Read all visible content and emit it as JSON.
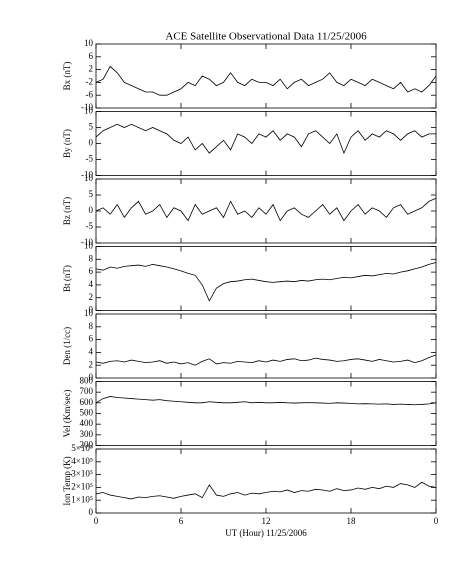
{
  "chart_data": [
    {
      "type": "line",
      "title": "ACE Satellite Observational Data   11/25/2006",
      "ylabel": "Bx (nT)",
      "ylim": [
        -10,
        10
      ],
      "yticks": [
        -10,
        -6,
        -2,
        2,
        6,
        10
      ],
      "xlim": [
        0,
        24
      ],
      "xticks": [
        0,
        6,
        12,
        18,
        24
      ],
      "color": "#000000",
      "x": [
        0,
        0.5,
        1,
        1.5,
        2,
        2.5,
        3,
        3.5,
        4,
        4.5,
        5,
        5.5,
        6,
        6.5,
        7,
        7.5,
        8,
        8.5,
        9,
        9.5,
        10,
        10.5,
        11,
        11.5,
        12,
        12.5,
        13,
        13.5,
        14,
        14.5,
        15,
        15.5,
        16,
        16.5,
        17,
        17.5,
        18,
        18.5,
        19,
        19.5,
        20,
        20.5,
        21,
        21.5,
        22,
        22.5,
        23,
        23.5,
        24
      ],
      "values": [
        -2,
        -1,
        3,
        1,
        -2,
        -3,
        -4,
        -5,
        -5,
        -6,
        -6,
        -5,
        -4,
        -2,
        -3,
        0,
        -1,
        -3,
        -2,
        1,
        -2,
        -3,
        -1,
        -2,
        -2,
        -3,
        -1,
        -4,
        -2,
        -1,
        -3,
        -2,
        -1,
        1,
        -2,
        -3,
        -1,
        -2,
        -3,
        -1,
        -2,
        -3,
        -4,
        -2,
        -5,
        -4,
        -5,
        -3,
        0
      ]
    },
    {
      "type": "line",
      "ylabel": "By (nT)",
      "ylim": [
        -10,
        10
      ],
      "yticks": [
        -10,
        -5,
        0,
        5,
        10
      ],
      "xlim": [
        0,
        24
      ],
      "xticks": [
        0,
        6,
        12,
        18,
        24
      ],
      "color": "#000000",
      "x": [
        0,
        0.5,
        1,
        1.5,
        2,
        2.5,
        3,
        3.5,
        4,
        4.5,
        5,
        5.5,
        6,
        6.5,
        7,
        7.5,
        8,
        8.5,
        9,
        9.5,
        10,
        10.5,
        11,
        11.5,
        12,
        12.5,
        13,
        13.5,
        14,
        14.5,
        15,
        15.5,
        16,
        16.5,
        17,
        17.5,
        18,
        18.5,
        19,
        19.5,
        20,
        20.5,
        21,
        21.5,
        22,
        22.5,
        23,
        23.5,
        24
      ],
      "values": [
        2,
        4,
        5,
        6,
        5,
        6,
        5,
        4,
        5,
        4,
        3,
        1,
        0,
        2,
        -2,
        0,
        -3,
        -1,
        1,
        -2,
        3,
        2,
        0,
        3,
        2,
        4,
        1,
        3,
        2,
        -1,
        3,
        4,
        2,
        0,
        3,
        -3,
        2,
        4,
        1,
        3,
        2,
        4,
        3,
        1,
        3,
        4,
        2,
        3,
        3
      ]
    },
    {
      "type": "line",
      "ylabel": "Bz (nT)",
      "ylim": [
        -10,
        10
      ],
      "yticks": [
        -10,
        -5,
        0,
        5,
        10
      ],
      "xlim": [
        0,
        24
      ],
      "xticks": [
        0,
        6,
        12,
        18,
        24
      ],
      "color": "#000000",
      "x": [
        0,
        0.5,
        1,
        1.5,
        2,
        2.5,
        3,
        3.5,
        4,
        4.5,
        5,
        5.5,
        6,
        6.5,
        7,
        7.5,
        8,
        8.5,
        9,
        9.5,
        10,
        10.5,
        11,
        11.5,
        12,
        12.5,
        13,
        13.5,
        14,
        14.5,
        15,
        15.5,
        16,
        16.5,
        17,
        17.5,
        18,
        18.5,
        19,
        19.5,
        20,
        20.5,
        21,
        21.5,
        22,
        22.5,
        23,
        23.5,
        24
      ],
      "values": [
        0,
        1,
        -1,
        2,
        -2,
        1,
        3,
        -1,
        0,
        2,
        -2,
        1,
        0,
        -3,
        2,
        -1,
        0,
        1,
        -2,
        3,
        -1,
        0,
        -2,
        1,
        -1,
        2,
        -3,
        0,
        1,
        -1,
        -2,
        0,
        2,
        -1,
        1,
        -3,
        0,
        2,
        -1,
        1,
        0,
        -2,
        1,
        2,
        -1,
        0,
        1,
        3,
        4
      ]
    },
    {
      "type": "line",
      "ylabel": "Bt (nT)",
      "ylim": [
        0,
        10
      ],
      "yticks": [
        0,
        2,
        4,
        6,
        8,
        10
      ],
      "xlim": [
        0,
        24
      ],
      "xticks": [
        0,
        6,
        12,
        18,
        24
      ],
      "color": "#000000",
      "x": [
        0,
        0.5,
        1,
        1.5,
        2,
        2.5,
        3,
        3.5,
        4,
        4.5,
        5,
        5.5,
        6,
        6.5,
        7,
        7.5,
        8,
        8.5,
        9,
        9.5,
        10,
        10.5,
        11,
        11.5,
        12,
        12.5,
        13,
        13.5,
        14,
        14.5,
        15,
        15.5,
        16,
        16.5,
        17,
        17.5,
        18,
        18.5,
        19,
        19.5,
        20,
        20.5,
        21,
        21.5,
        22,
        22.5,
        23,
        23.5,
        24
      ],
      "values": [
        6.5,
        6.3,
        6.8,
        6.6,
        6.9,
        7.0,
        7.1,
        6.9,
        7.2,
        7.0,
        6.8,
        6.5,
        6.2,
        5.8,
        5.5,
        4.0,
        1.5,
        3.5,
        4.2,
        4.5,
        4.6,
        4.8,
        4.9,
        4.7,
        4.5,
        4.4,
        4.5,
        4.6,
        4.5,
        4.7,
        4.6,
        4.8,
        4.9,
        4.8,
        5.0,
        5.2,
        5.1,
        5.3,
        5.5,
        5.4,
        5.6,
        5.8,
        5.7,
        6.0,
        6.2,
        6.5,
        6.8,
        7.2,
        7.5
      ]
    },
    {
      "type": "line",
      "ylabel": "Den (1/cc)",
      "ylim": [
        0,
        10
      ],
      "yticks": [
        0,
        2,
        4,
        6,
        8,
        10
      ],
      "xlim": [
        0,
        24
      ],
      "xticks": [
        0,
        6,
        12,
        18,
        24
      ],
      "color": "#000000",
      "x": [
        0,
        0.5,
        1,
        1.5,
        2,
        2.5,
        3,
        3.5,
        4,
        4.5,
        5,
        5.5,
        6,
        6.5,
        7,
        7.5,
        8,
        8.5,
        9,
        9.5,
        10,
        10.5,
        11,
        11.5,
        12,
        12.5,
        13,
        13.5,
        14,
        14.5,
        15,
        15.5,
        16,
        16.5,
        17,
        17.5,
        18,
        18.5,
        19,
        19.5,
        20,
        20.5,
        21,
        21.5,
        22,
        22.5,
        23,
        23.5,
        24
      ],
      "values": [
        2.5,
        2.3,
        2.6,
        2.7,
        2.5,
        2.8,
        2.6,
        2.4,
        2.5,
        2.7,
        2.3,
        2.5,
        2.2,
        2.4,
        2.0,
        2.6,
        3.0,
        2.2,
        2.4,
        2.3,
        2.6,
        2.5,
        2.4,
        2.7,
        2.5,
        2.8,
        2.6,
        2.9,
        3.0,
        2.7,
        2.8,
        3.1,
        2.9,
        2.8,
        2.6,
        2.7,
        2.9,
        3.0,
        2.8,
        2.6,
        2.9,
        2.7,
        2.5,
        2.6,
        2.8,
        2.4,
        2.7,
        3.2,
        3.6
      ]
    },
    {
      "type": "line",
      "ylabel": "Vel (Km/sec)",
      "ylim": [
        200,
        800
      ],
      "yticks": [
        200,
        300,
        400,
        500,
        600,
        700,
        800
      ],
      "xlim": [
        0,
        24
      ],
      "xticks": [
        0,
        6,
        12,
        18,
        24
      ],
      "color": "#000000",
      "x": [
        0,
        0.5,
        1,
        1.5,
        2,
        2.5,
        3,
        3.5,
        4,
        4.5,
        5,
        5.5,
        6,
        6.5,
        7,
        7.5,
        8,
        8.5,
        9,
        9.5,
        10,
        10.5,
        11,
        11.5,
        12,
        12.5,
        13,
        13.5,
        14,
        14.5,
        15,
        15.5,
        16,
        16.5,
        17,
        17.5,
        18,
        18.5,
        19,
        19.5,
        20,
        20.5,
        21,
        21.5,
        22,
        22.5,
        23,
        23.5,
        24
      ],
      "values": [
        600,
        640,
        660,
        650,
        645,
        640,
        635,
        630,
        625,
        630,
        620,
        615,
        610,
        605,
        600,
        600,
        610,
        605,
        600,
        600,
        605,
        610,
        600,
        605,
        600,
        600,
        605,
        600,
        598,
        600,
        602,
        600,
        598,
        595,
        600,
        598,
        595,
        590,
        592,
        590,
        588,
        590,
        585,
        588,
        585,
        582,
        585,
        590,
        600
      ]
    },
    {
      "type": "line",
      "ylabel": "Ion Temp (K)",
      "ylim": [
        0,
        500000
      ],
      "yticks": [
        0,
        {
          "value": 100000,
          "label": "1×10⁵"
        },
        {
          "value": 200000,
          "label": "2×10⁵"
        },
        {
          "value": 300000,
          "label": "3×10⁵"
        },
        {
          "value": 400000,
          "label": "4×10⁵"
        },
        {
          "value": 500000,
          "label": "5×10⁵"
        }
      ],
      "xlim": [
        0,
        24
      ],
      "xticks": [
        0,
        6,
        12,
        18,
        {
          "value": 24,
          "label": "0"
        }
      ],
      "xlabel": "UT (Hour)  11/25/2006",
      "color": "#000000",
      "x": [
        0,
        0.5,
        1,
        1.5,
        2,
        2.5,
        3,
        3.5,
        4,
        4.5,
        5,
        5.5,
        6,
        6.5,
        7,
        7.5,
        8,
        8.5,
        9,
        9.5,
        10,
        10.5,
        11,
        11.5,
        12,
        12.5,
        13,
        13.5,
        14,
        14.5,
        15,
        15.5,
        16,
        16.5,
        17,
        17.5,
        18,
        18.5,
        19,
        19.5,
        20,
        20.5,
        21,
        21.5,
        22,
        22.5,
        23,
        23.5,
        24
      ],
      "values": [
        150000,
        160000,
        140000,
        130000,
        120000,
        110000,
        125000,
        120000,
        130000,
        135000,
        125000,
        115000,
        130000,
        140000,
        150000,
        120000,
        220000,
        140000,
        130000,
        150000,
        160000,
        140000,
        155000,
        150000,
        160000,
        170000,
        165000,
        180000,
        160000,
        175000,
        170000,
        185000,
        180000,
        170000,
        190000,
        175000,
        180000,
        195000,
        185000,
        200000,
        190000,
        210000,
        200000,
        230000,
        220000,
        200000,
        240000,
        210000,
        200000
      ]
    }
  ]
}
